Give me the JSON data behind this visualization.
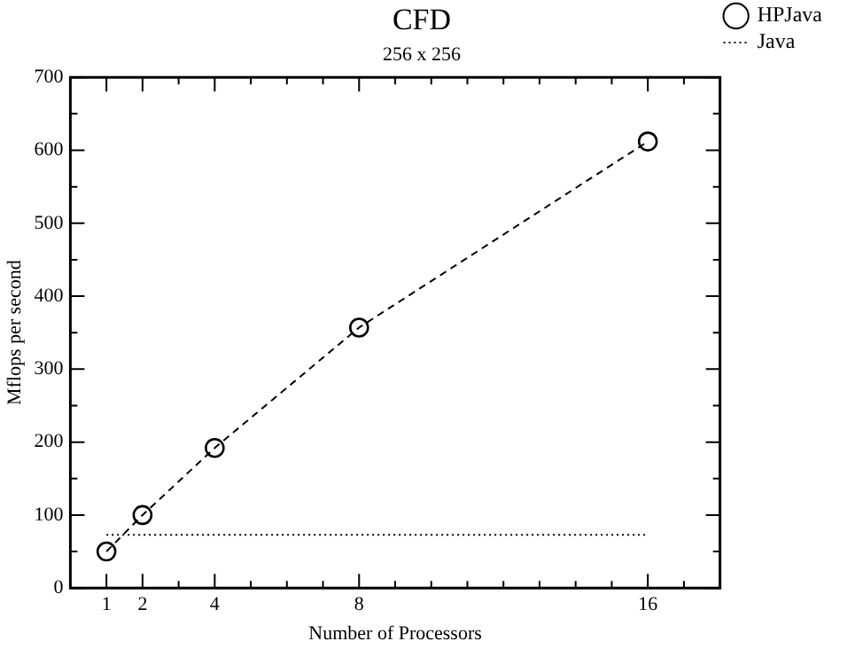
{
  "chart_data": {
    "type": "line",
    "title": "CFD",
    "subtitle": "256 x 256",
    "xlabel": "Number of Processors",
    "ylabel": "Mflops per second",
    "xlim": [
      0,
      18
    ],
    "ylim": [
      0,
      700
    ],
    "xticks": [
      1,
      2,
      {
        "value": 3,
        "label": null
      },
      4,
      {
        "value": 5,
        "label": null
      },
      {
        "value": 6,
        "label": null
      },
      {
        "value": 7,
        "label": null
      },
      8,
      {
        "value": 9,
        "label": null
      },
      {
        "value": 10,
        "label": null
      },
      {
        "value": 11,
        "label": null
      },
      {
        "value": 12,
        "label": null
      },
      {
        "value": 13,
        "label": null
      },
      {
        "value": 14,
        "label": null
      },
      {
        "value": 15,
        "label": null
      },
      16,
      {
        "value": 17,
        "label": null
      }
    ],
    "yticks": [
      0,
      {
        "value": 50,
        "label": null
      },
      100,
      {
        "value": 150,
        "label": null
      },
      200,
      {
        "value": 250,
        "label": null
      },
      300,
      {
        "value": 350,
        "label": null
      },
      400,
      {
        "value": 450,
        "label": null
      },
      500,
      {
        "value": 550,
        "label": null
      },
      600,
      {
        "value": 650,
        "label": null
      },
      700
    ],
    "legend": "right",
    "series": [
      {
        "name": "HPJava",
        "color": "#000000",
        "x": [
          1,
          2,
          4,
          8,
          16
        ],
        "values": [
          50,
          100,
          192,
          357,
          612
        ],
        "marker": "circle",
        "line_style": "dashed"
      },
      {
        "name": "Java",
        "color": "#000000",
        "x": [
          1,
          2,
          4,
          8,
          16
        ],
        "values": [
          73,
          73,
          73,
          73,
          73
        ],
        "marker": "none",
        "line_style": "dotted"
      }
    ]
  }
}
